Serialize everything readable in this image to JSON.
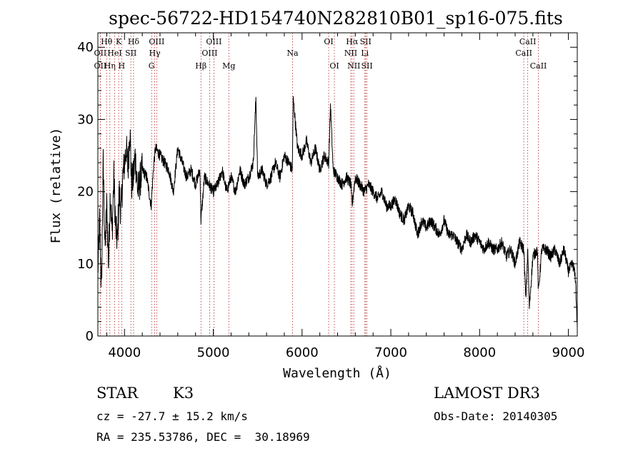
{
  "chart_data": {
    "type": "line",
    "title": "spec-56722-HD154740N282810B01_sp16-075.fits",
    "xlabel": "Wavelength (Å)",
    "ylabel": "Flux (relative)",
    "xlim": [
      3700,
      9100
    ],
    "ylim": [
      0,
      42
    ],
    "xticks": [
      4000,
      5000,
      6000,
      7000,
      8000,
      9000
    ],
    "yticks": [
      0,
      10,
      20,
      30,
      40
    ],
    "series": [
      {
        "name": "flux",
        "x": [
          3700,
          3720,
          3740,
          3760,
          3780,
          3800,
          3820,
          3840,
          3860,
          3880,
          3900,
          3920,
          3940,
          3960,
          3980,
          4000,
          4020,
          4040,
          4060,
          4080,
          4100,
          4120,
          4150,
          4200,
          4250,
          4300,
          4330,
          4350,
          4400,
          4450,
          4500,
          4550,
          4600,
          4650,
          4700,
          4750,
          4800,
          4850,
          4861,
          4900,
          4950,
          5000,
          5050,
          5100,
          5150,
          5175,
          5200,
          5250,
          5300,
          5350,
          5400,
          5450,
          5480,
          5500,
          5550,
          5600,
          5650,
          5700,
          5750,
          5800,
          5850,
          5890,
          5900,
          5950,
          6000,
          6050,
          6100,
          6150,
          6200,
          6250,
          6300,
          6320,
          6350,
          6400,
          6450,
          6500,
          6550,
          6563,
          6580,
          6600,
          6650,
          6700,
          6750,
          6800,
          6850,
          6900,
          6950,
          7000,
          7050,
          7100,
          7150,
          7200,
          7250,
          7300,
          7350,
          7400,
          7450,
          7500,
          7550,
          7600,
          7650,
          7700,
          7750,
          7800,
          7850,
          7900,
          7950,
          8000,
          8050,
          8100,
          8150,
          8200,
          8250,
          8300,
          8350,
          8400,
          8450,
          8498,
          8520,
          8542,
          8560,
          8600,
          8650,
          8662,
          8700,
          8750,
          8800,
          8850,
          8900,
          8950,
          9000,
          9050,
          9080,
          9100
        ],
        "y": [
          9,
          16,
          6,
          24,
          12,
          18,
          10,
          20,
          14,
          22,
          15,
          13,
          20,
          17,
          22,
          24,
          26,
          23,
          29,
          21,
          22,
          25,
          20,
          23,
          22,
          18,
          24,
          26,
          25,
          24,
          23,
          20,
          26,
          24,
          22,
          23,
          21,
          23,
          16,
          22,
          21,
          20,
          21,
          23,
          20,
          21,
          22,
          20,
          23,
          21,
          22,
          24,
          33,
          22,
          23,
          21,
          22,
          24,
          22,
          25,
          24,
          23,
          33,
          26,
          25,
          27,
          24,
          26,
          23,
          25,
          24,
          32,
          23,
          22,
          21,
          22,
          21,
          18,
          20,
          22,
          21,
          20,
          21,
          20,
          19,
          20,
          18,
          18,
          19,
          17,
          16,
          18,
          17,
          14,
          16,
          15,
          16,
          15,
          14,
          16,
          14,
          14,
          13,
          12,
          14,
          13,
          14,
          13,
          12,
          13,
          12,
          12,
          13,
          11,
          12,
          10,
          13,
          12,
          5,
          12,
          4,
          11,
          12,
          6,
          12,
          12,
          11,
          12,
          10,
          12,
          9,
          10,
          8,
          1
        ]
      }
    ],
    "spectral_lines": [
      {
        "label": "Hθ",
        "x": 3798,
        "row": 0
      },
      {
        "label": "OII",
        "x": 3727,
        "row": 1
      },
      {
        "label": "OII",
        "x": 3727,
        "row": 2
      },
      {
        "label": "Hη",
        "x": 3835,
        "row": 2
      },
      {
        "label": "HeI",
        "x": 3889,
        "row": 1
      },
      {
        "label": "K",
        "x": 3934,
        "row": 0
      },
      {
        "label": "H",
        "x": 3968,
        "row": 2
      },
      {
        "label": "SII",
        "x": 4072,
        "row": 1
      },
      {
        "label": "Hδ",
        "x": 4102,
        "row": 0
      },
      {
        "label": "OIII",
        "x": 4363,
        "row": 0
      },
      {
        "label": "Hγ",
        "x": 4340,
        "row": 1
      },
      {
        "label": "G",
        "x": 4305,
        "row": 2
      },
      {
        "label": "Hβ",
        "x": 4861,
        "row": 2
      },
      {
        "label": "OIII",
        "x": 5007,
        "row": 0
      },
      {
        "label": "OIII",
        "x": 4959,
        "row": 1
      },
      {
        "label": "Mg",
        "x": 5175,
        "row": 2
      },
      {
        "label": "Na",
        "x": 5893,
        "row": 1
      },
      {
        "label": "OI",
        "x": 6300,
        "row": 0
      },
      {
        "label": "OI",
        "x": 6364,
        "row": 2
      },
      {
        "label": "Hα",
        "x": 6563,
        "row": 0
      },
      {
        "label": "NII",
        "x": 6548,
        "row": 1
      },
      {
        "label": "NII",
        "x": 6583,
        "row": 2
      },
      {
        "label": "SII",
        "x": 6716,
        "row": 0
      },
      {
        "label": "Li",
        "x": 6708,
        "row": 1
      },
      {
        "label": "SII",
        "x": 6731,
        "row": 2
      },
      {
        "label": "CaII",
        "x": 8542,
        "row": 0
      },
      {
        "label": "CaII",
        "x": 8498,
        "row": 1
      },
      {
        "label": "CaII",
        "x": 8662,
        "row": 2
      }
    ]
  },
  "info": {
    "object_type": "STAR",
    "subclass": "K3",
    "survey": "LAMOST DR3",
    "cz": "cz = -27.7 ± 15.2 km/s",
    "obs_date": "Obs-Date: 20140305",
    "coords": "RA = 235.53786, DEC =  30.18969"
  }
}
